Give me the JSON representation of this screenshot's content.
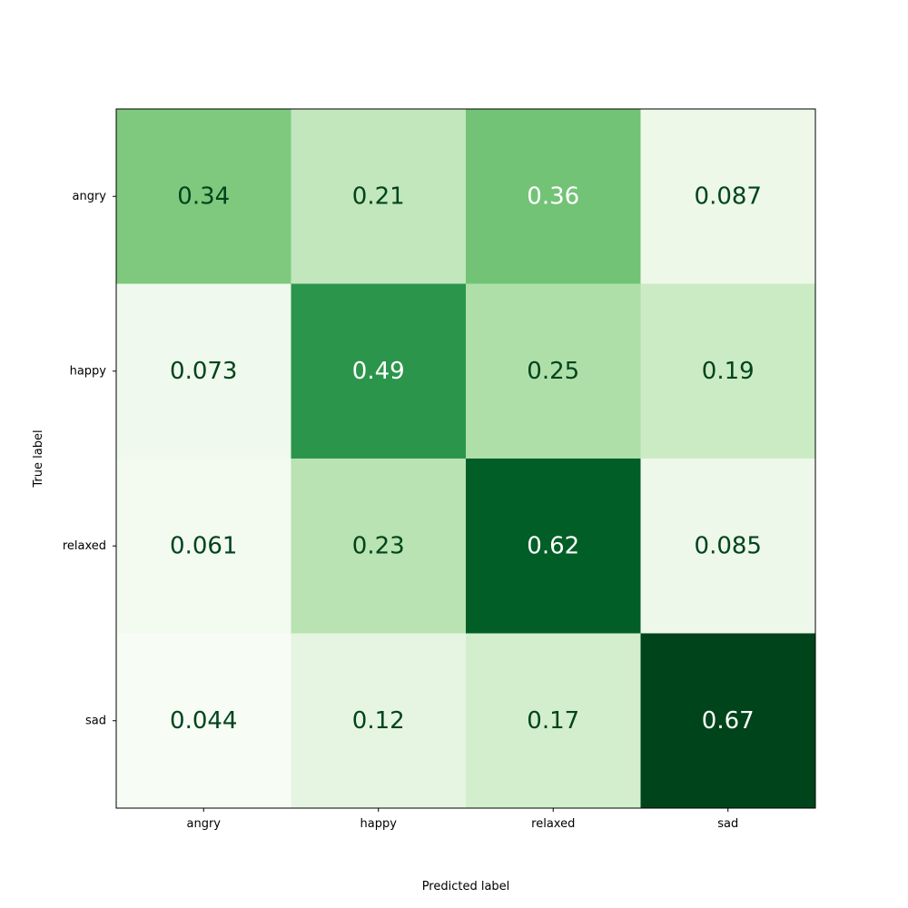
{
  "chart_data": {
    "type": "heatmap",
    "title": "",
    "xlabel": "Predicted label",
    "ylabel": "True label",
    "x_categories": [
      "angry",
      "happy",
      "relaxed",
      "sad"
    ],
    "y_categories": [
      "angry",
      "happy",
      "relaxed",
      "sad"
    ],
    "values": [
      [
        0.34,
        0.21,
        0.36,
        0.087
      ],
      [
        0.073,
        0.49,
        0.25,
        0.19
      ],
      [
        0.061,
        0.23,
        0.62,
        0.085
      ],
      [
        0.044,
        0.12,
        0.17,
        0.67
      ]
    ],
    "labels": [
      [
        "0.34",
        "0.21",
        "0.36",
        "0.087"
      ],
      [
        "0.073",
        "0.49",
        "0.25",
        "0.19"
      ],
      [
        "0.061",
        "0.23",
        "0.62",
        "0.085"
      ],
      [
        "0.044",
        "0.12",
        "0.17",
        "0.67"
      ]
    ],
    "colormap": "Greens",
    "color_range": [
      0.044,
      0.67
    ],
    "text_color_dark": "#00441b",
    "text_color_light": "#ffffff",
    "grid": false,
    "colorbar": false
  }
}
